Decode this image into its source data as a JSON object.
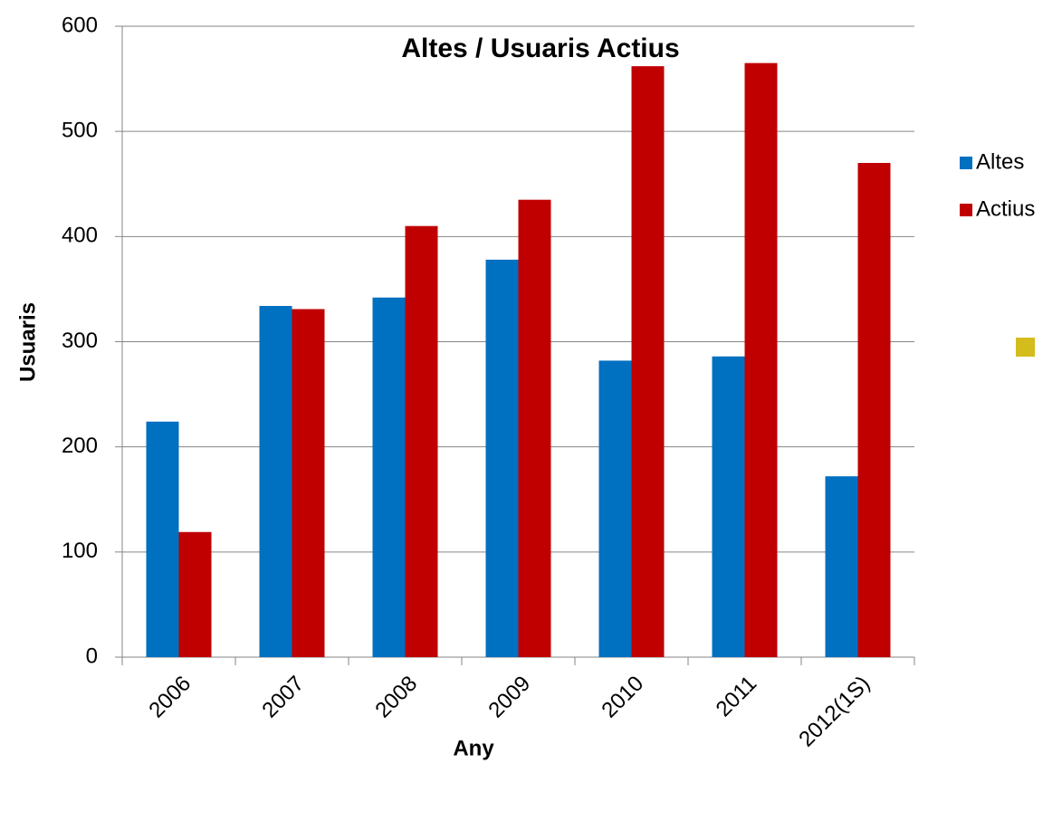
{
  "chart_data": {
    "type": "bar",
    "title": "Altes / Usuaris Actius",
    "x_label": "Any",
    "y_label": "Usuaris",
    "categories": [
      "2006",
      "2007",
      "2008",
      "2009",
      "2010",
      "2011",
      "2012(1S)"
    ],
    "series": [
      {
        "name": "Altes",
        "color": "#0070c0",
        "values": [
          224,
          334,
          342,
          378,
          282,
          286,
          172
        ]
      },
      {
        "name": "Actius",
        "color": "#c00000",
        "values": [
          119,
          331,
          410,
          435,
          562,
          565,
          470
        ]
      }
    ],
    "ylim": [
      0,
      600
    ],
    "yticks": [
      0,
      100,
      200,
      300,
      400,
      500,
      600
    ],
    "grid": true,
    "legend": "right"
  }
}
